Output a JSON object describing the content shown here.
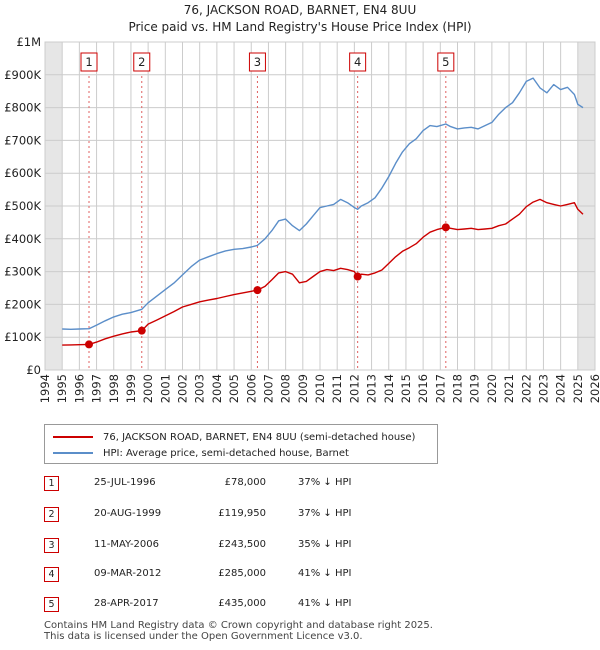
{
  "chart_data": {
    "type": "line",
    "title": "76, JACKSON ROAD, BARNET, EN4 8UU",
    "subtitle": "Price paid vs. HM Land Registry's House Price Index (HPI)",
    "xlim": [
      1994,
      2026
    ],
    "ylim": [
      0,
      1000000
    ],
    "x_ticks": [
      "1994",
      "1995",
      "1996",
      "1997",
      "1998",
      "1999",
      "2000",
      "2001",
      "2002",
      "2003",
      "2004",
      "2005",
      "2006",
      "2007",
      "2008",
      "2009",
      "2010",
      "2011",
      "2012",
      "2013",
      "2014",
      "2015",
      "2016",
      "2017",
      "2018",
      "2019",
      "2020",
      "2021",
      "2022",
      "2023",
      "2024",
      "2025",
      "2026"
    ],
    "y_ticks": [
      {
        "value": 0,
        "label": "£0"
      },
      {
        "value": 100000,
        "label": "£100K"
      },
      {
        "value": 200000,
        "label": "£200K"
      },
      {
        "value": 300000,
        "label": "£300K"
      },
      {
        "value": 400000,
        "label": "£400K"
      },
      {
        "value": 500000,
        "label": "£500K"
      },
      {
        "value": 600000,
        "label": "£600K"
      },
      {
        "value": 700000,
        "label": "£700K"
      },
      {
        "value": 800000,
        "label": "£800K"
      },
      {
        "value": 900000,
        "label": "£900K"
      },
      {
        "value": 1000000,
        "label": "£1M"
      }
    ],
    "shaded_ranges": [
      [
        1994,
        1995
      ],
      [
        2025,
        2026
      ]
    ],
    "series": [
      {
        "name": "76, JACKSON ROAD, BARNET, EN4 8UU (semi-detached house)",
        "color": "#cc0000",
        "x": [
          1995.0,
          1995.5,
          1996.0,
          1996.56,
          1997.0,
          1997.5,
          1998.0,
          1998.5,
          1999.0,
          1999.63,
          2000.0,
          2000.5,
          2001.0,
          2001.5,
          2002.0,
          2002.5,
          2003.0,
          2003.5,
          2004.0,
          2004.5,
          2005.0,
          2005.5,
          2006.0,
          2006.36,
          2006.8,
          2007.2,
          2007.6,
          2008.0,
          2008.4,
          2008.8,
          2009.2,
          2009.6,
          2010.0,
          2010.4,
          2010.8,
          2011.2,
          2011.6,
          2012.0,
          2012.19,
          2012.4,
          2012.8,
          2013.2,
          2013.6,
          2014.0,
          2014.4,
          2014.8,
          2015.2,
          2015.6,
          2016.0,
          2016.4,
          2016.8,
          2017.32,
          2017.6,
          2018.0,
          2018.4,
          2018.8,
          2019.2,
          2019.6,
          2020.0,
          2020.4,
          2020.8,
          2021.2,
          2021.6,
          2022.0,
          2022.4,
          2022.8,
          2023.2,
          2023.6,
          2024.0,
          2024.4,
          2024.8,
          2025.0,
          2025.3
        ],
        "values": [
          76000,
          76500,
          77000,
          78000,
          85000,
          95000,
          103000,
          110000,
          116000,
          119950,
          140000,
          152000,
          165000,
          178000,
          192000,
          200000,
          208000,
          213000,
          218000,
          224000,
          230000,
          235000,
          240000,
          243500,
          255000,
          275000,
          296000,
          300000,
          292000,
          266000,
          270000,
          285000,
          300000,
          306000,
          303000,
          310000,
          306000,
          300000,
          285000,
          292000,
          290000,
          296000,
          305000,
          325000,
          345000,
          362000,
          373000,
          385000,
          405000,
          420000,
          428000,
          435000,
          432000,
          428000,
          430000,
          432000,
          428000,
          430000,
          432000,
          440000,
          445000,
          460000,
          475000,
          498000,
          512000,
          520000,
          510000,
          505000,
          500000,
          505000,
          510000,
          490000,
          475000
        ]
      },
      {
        "name": "HPI: Average price, semi-detached house, Barnet",
        "color": "#5b8ec9",
        "x": [
          1995.0,
          1995.5,
          1996.0,
          1996.56,
          1997.0,
          1997.5,
          1998.0,
          1998.5,
          1999.0,
          1999.63,
          2000.0,
          2000.5,
          2001.0,
          2001.5,
          2002.0,
          2002.5,
          2003.0,
          2003.5,
          2004.0,
          2004.5,
          2005.0,
          2005.5,
          2006.0,
          2006.36,
          2006.8,
          2007.2,
          2007.6,
          2008.0,
          2008.4,
          2008.8,
          2009.2,
          2009.6,
          2010.0,
          2010.4,
          2010.8,
          2011.2,
          2011.6,
          2012.0,
          2012.19,
          2012.4,
          2012.8,
          2013.2,
          2013.6,
          2014.0,
          2014.4,
          2014.8,
          2015.2,
          2015.6,
          2016.0,
          2016.4,
          2016.8,
          2017.32,
          2017.6,
          2018.0,
          2018.4,
          2018.8,
          2019.2,
          2019.6,
          2020.0,
          2020.4,
          2020.8,
          2021.2,
          2021.6,
          2022.0,
          2022.4,
          2022.8,
          2023.2,
          2023.6,
          2024.0,
          2024.4,
          2024.8,
          2025.0,
          2025.3
        ],
        "values": [
          125000,
          124000,
          125000,
          126000,
          137000,
          150000,
          162000,
          170000,
          175000,
          185000,
          205000,
          225000,
          245000,
          265000,
          290000,
          315000,
          335000,
          345000,
          355000,
          363000,
          368000,
          370000,
          375000,
          380000,
          400000,
          425000,
          455000,
          460000,
          440000,
          425000,
          445000,
          470000,
          495000,
          500000,
          505000,
          520000,
          510000,
          495000,
          490000,
          500000,
          510000,
          525000,
          555000,
          590000,
          630000,
          665000,
          690000,
          705000,
          730000,
          745000,
          742000,
          750000,
          742000,
          735000,
          738000,
          740000,
          735000,
          745000,
          755000,
          780000,
          800000,
          815000,
          845000,
          880000,
          890000,
          860000,
          845000,
          870000,
          855000,
          862000,
          840000,
          810000,
          800000
        ]
      }
    ],
    "sales": [
      {
        "label": "1",
        "x": 1996.56,
        "value": 78000
      },
      {
        "label": "2",
        "x": 1999.63,
        "value": 119950
      },
      {
        "label": "3",
        "x": 2006.36,
        "value": 243500
      },
      {
        "label": "4",
        "x": 2012.19,
        "value": 285000
      },
      {
        "label": "5",
        "x": 2017.32,
        "value": 435000
      }
    ]
  },
  "legend": {
    "property": "76, JACKSON ROAD, BARNET, EN4 8UU (semi-detached house)",
    "hpi": "HPI: Average price, semi-detached house, Barnet"
  },
  "table": [
    {
      "num": "1",
      "date": "25-JUL-1996",
      "price": "£78,000",
      "hpi": "37% ↓ HPI"
    },
    {
      "num": "2",
      "date": "20-AUG-1999",
      "price": "£119,950",
      "hpi": "37% ↓ HPI"
    },
    {
      "num": "3",
      "date": "11-MAY-2006",
      "price": "£243,500",
      "hpi": "35% ↓ HPI"
    },
    {
      "num": "4",
      "date": "09-MAR-2012",
      "price": "£285,000",
      "hpi": "41% ↓ HPI"
    },
    {
      "num": "5",
      "date": "28-APR-2017",
      "price": "£435,000",
      "hpi": "41% ↓ HPI"
    }
  ],
  "footer": {
    "line1": "Contains HM Land Registry data © Crown copyright and database right 2025.",
    "line2": "This data is licensed under the Open Government Licence v3.0."
  }
}
